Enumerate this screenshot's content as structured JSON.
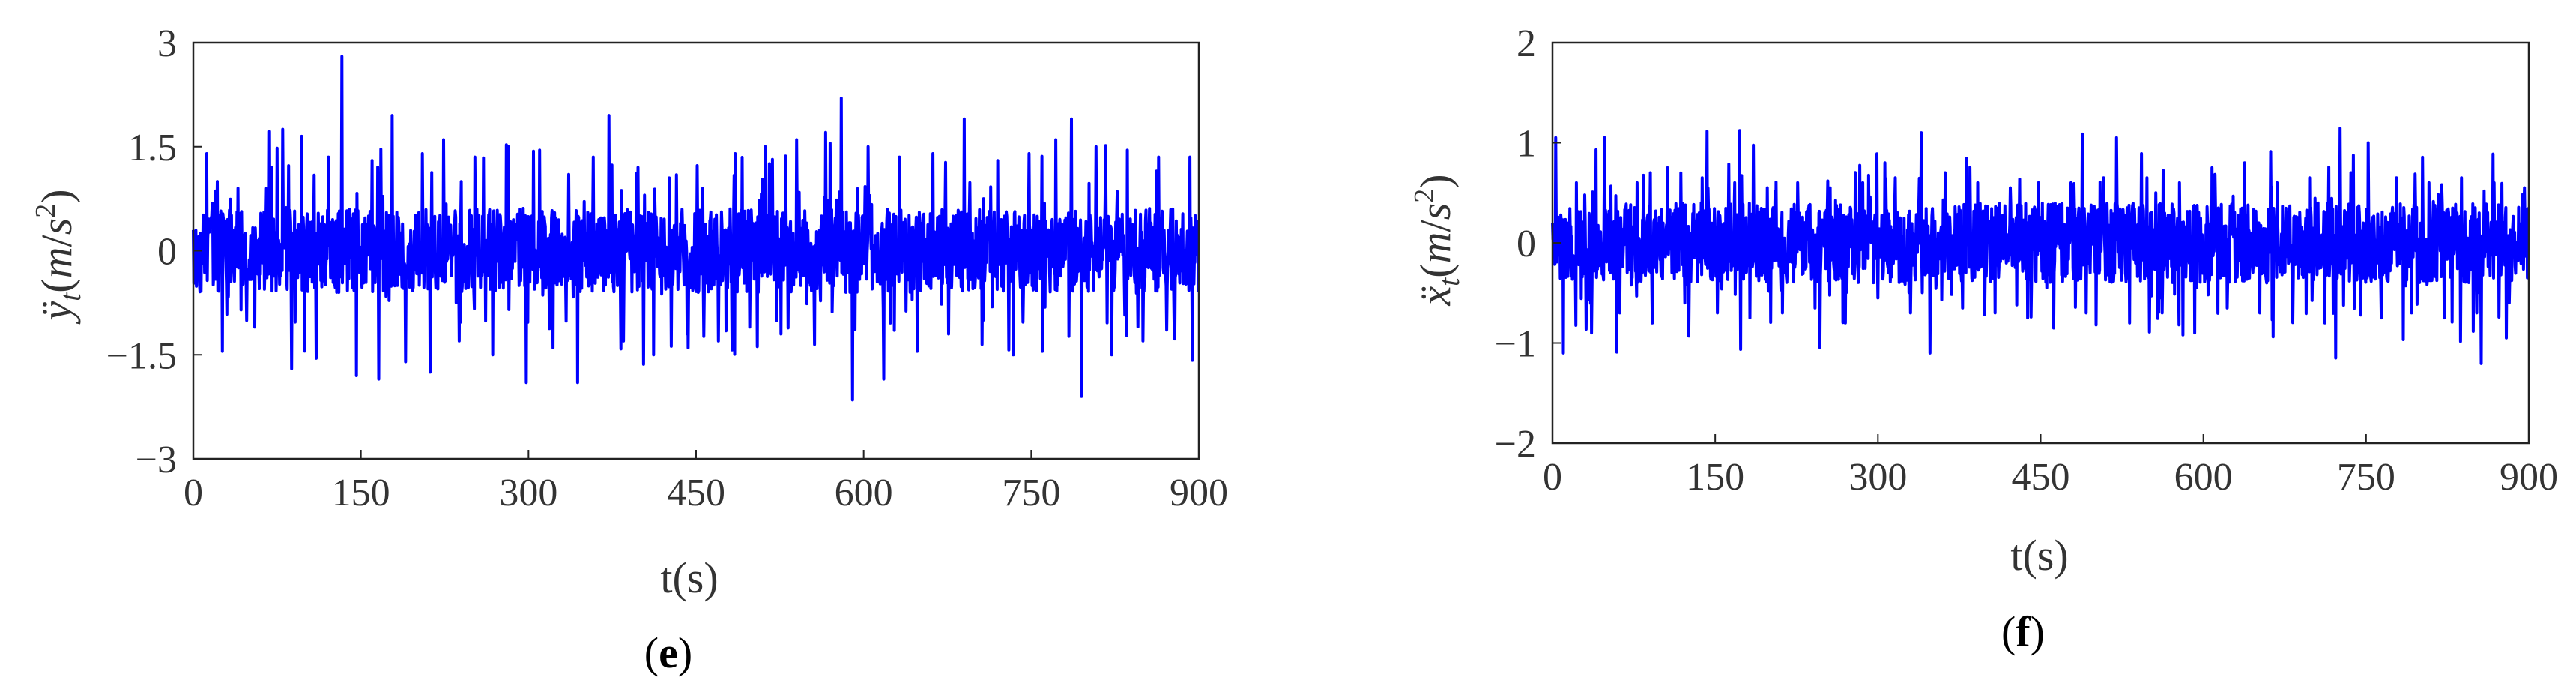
{
  "chart_data": [
    {
      "type": "line",
      "panel": "e",
      "xlabel": "t(s)",
      "ylabel": "ÿ_t(m/s²)",
      "ylabel_parts": {
        "var": "ÿ",
        "sub": "t",
        "unit_open": "(",
        "unit_m": "m",
        "unit_slash": "/",
        "unit_s": "s",
        "unit_exp": "2",
        "unit_close": ")"
      },
      "xlim": [
        0,
        900
      ],
      "ylim": [
        -3,
        3
      ],
      "x_ticks": [
        0,
        150,
        300,
        450,
        600,
        750,
        900
      ],
      "y_ticks": [
        -3,
        -1.5,
        0,
        1.5,
        3
      ],
      "x_tick_labels": [
        "0",
        "150",
        "300",
        "450",
        "600",
        "750",
        "900"
      ],
      "y_tick_labels": [
        "−3",
        "−1.5",
        "0",
        "1.5",
        "3"
      ],
      "grid": true,
      "series_color": "#0000ff",
      "series": [
        {
          "x": [
            0,
            12,
            26,
            40,
            55,
            70,
            80,
            88,
            97,
            110,
            121,
            133,
            146,
            160,
            166,
            178,
            190,
            205,
            212,
            224,
            238,
            252,
            268,
            282,
            298,
            310,
            322,
            336,
            344,
            358,
            372,
            385,
            398,
            412,
            426,
            442,
            456,
            470,
            485,
            498,
            512,
            526,
            540,
            556,
            570,
            580,
            590,
            604,
            618,
            632,
            648,
            662,
            676,
            690,
            706,
            720,
            734,
            748,
            760,
            772,
            786,
            795,
            808,
            822,
            836,
            850,
            864,
            878,
            892,
            900
          ],
          "y": [
            0.3,
            1.4,
            -1.45,
            0.9,
            -1.1,
            1.2,
            1.75,
            -1.7,
            1.65,
            -1.55,
            1.35,
            2.8,
            -1.8,
            1.3,
            -1.85,
            1.95,
            -1.6,
            1.4,
            -1.75,
            1.6,
            -1.3,
            1.35,
            -1.5,
            1.5,
            -1.9,
            1.45,
            -1.4,
            1.1,
            -1.9,
            1.35,
            1.95,
            -1.3,
            1.2,
            -1.5,
            1.05,
            -1.2,
            0.9,
            -1.3,
            1.4,
            -1.1,
            1.5,
            -1.2,
            1.6,
            -1.35,
            1.55,
            2.2,
            -2.15,
            1.5,
            -1.85,
            1.35,
            -1.45,
            1.4,
            -1.2,
            1.9,
            -1.35,
            1.3,
            -1.5,
            1.4,
            -1.45,
            1.6,
            1.9,
            -2.1,
            1.5,
            -1.5,
            1.45,
            -1.3,
            1.35,
            -1.2,
            1.35,
            -0.6
          ]
        }
      ]
    },
    {
      "type": "line",
      "panel": "f",
      "xlabel": "t(s)",
      "ylabel": "ẍ_t(m/s²)",
      "ylabel_parts": {
        "var": "ẍ",
        "sub": "t",
        "unit_open": "(",
        "unit_m": "m",
        "unit_slash": "/",
        "unit_s": "s",
        "unit_exp": "2",
        "unit_close": ")"
      },
      "xlim": [
        0,
        900
      ],
      "ylim": [
        -2,
        2
      ],
      "x_ticks": [
        0,
        150,
        300,
        450,
        600,
        750,
        900
      ],
      "y_ticks": [
        -2,
        -1,
        0,
        1,
        2
      ],
      "x_tick_labels": [
        "0",
        "150",
        "300",
        "450",
        "600",
        "750",
        "900"
      ],
      "y_tick_labels": [
        "−2",
        "−1",
        "0",
        "1",
        "2"
      ],
      "grid": true,
      "series_color": "#0000ff",
      "series": [
        {
          "x": [
            0,
            3,
            10,
            22,
            36,
            48,
            62,
            78,
            92,
            106,
            122,
            138,
            152,
            168,
            182,
            198,
            212,
            226,
            242,
            256,
            270,
            286,
            300,
            316,
            330,
            340,
            348,
            362,
            378,
            392,
            408,
            422,
            438,
            448,
            462,
            478,
            492,
            508,
            520,
            532,
            548,
            562,
            578,
            592,
            608,
            622,
            638,
            652,
            668,
            682,
            698,
            712,
            722,
            736,
            752,
            764,
            778,
            792,
            808,
            822,
            838,
            852,
            868,
            882,
            896,
            900
          ],
          "y": [
            0.2,
            1.05,
            -1.1,
            0.6,
            -0.9,
            1.05,
            -0.7,
            0.6,
            -0.8,
            0.75,
            -0.6,
            0.65,
            -0.7,
            0.6,
            -0.75,
            0.55,
            -0.7,
            0.6,
            -0.65,
            0.55,
            -0.8,
            0.6,
            -0.55,
            0.65,
            -0.7,
            1.1,
            -1.1,
            0.7,
            -0.65,
            0.6,
            -0.7,
            0.55,
            -0.75,
            0.6,
            -0.85,
            0.6,
            -0.7,
            0.65,
            1.05,
            -0.8,
            0.65,
            -0.7,
            0.6,
            -0.9,
            0.75,
            -0.65,
            0.8,
            -0.7,
            0.6,
            -0.75,
            0.65,
            -0.8,
            -1.15,
            0.7,
            1.0,
            -0.75,
            0.65,
            -0.7,
            0.6,
            -0.75,
            0.65,
            -0.7,
            0.6,
            -0.6,
            0.55,
            -0.3
          ]
        }
      ]
    }
  ],
  "captions": {
    "e": "e",
    "f": "f"
  }
}
